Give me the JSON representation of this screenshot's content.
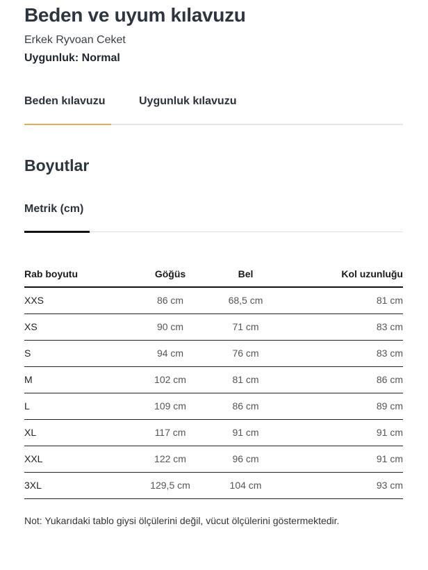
{
  "header": {
    "title": "Beden ve uyum kılavuzu",
    "product": "Erkek Ryvoan Ceket",
    "fit": "Uygunluk: Normal"
  },
  "tabs": [
    {
      "label": "Beden kılavuzu",
      "active": true
    },
    {
      "label": "Uygunluk kılavuzu",
      "active": false
    }
  ],
  "accent_color": "#d9b257",
  "section_title": "Boyutlar",
  "unit_tab": "Metrik (cm)",
  "table": {
    "headers": [
      "Rab boyutu",
      "Göğüs",
      "Bel",
      "Kol uzunluğu"
    ],
    "rows": [
      [
        "XXS",
        "86 cm",
        "68,5 cm",
        "81 cm"
      ],
      [
        "XS",
        "90 cm",
        "71 cm",
        "83 cm"
      ],
      [
        "S",
        "94 cm",
        "76 cm",
        "83 cm"
      ],
      [
        "M",
        "102 cm",
        "81 cm",
        "86 cm"
      ],
      [
        "L",
        "109 cm",
        "86 cm",
        "89 cm"
      ],
      [
        "XL",
        "117 cm",
        "91 cm",
        "91 cm"
      ],
      [
        "XXL",
        "122 cm",
        "96 cm",
        "91 cm"
      ],
      [
        "3XL",
        "129,5 cm",
        "104 cm",
        "93 cm"
      ]
    ]
  },
  "note": "Not: Yukarıdaki tablo giysi ölçülerini değil, vücut ölçülerini göstermektedir."
}
